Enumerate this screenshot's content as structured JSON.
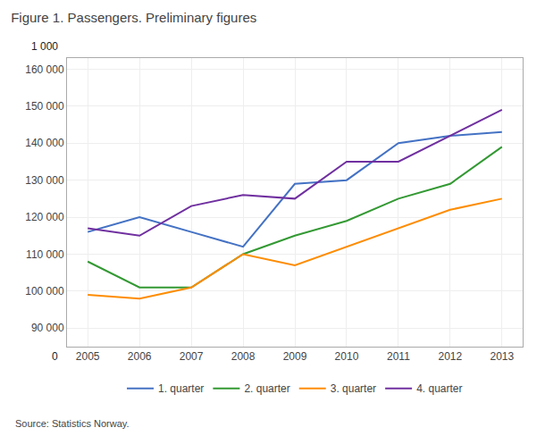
{
  "chart_data": {
    "type": "line",
    "title": "Figure 1. Passengers. Preliminary figures",
    "x": [
      2005,
      2006,
      2007,
      2008,
      2009,
      2010,
      2011,
      2012,
      2013
    ],
    "series": [
      {
        "name": "1. quarter",
        "color": "#4472C4",
        "values": [
          116000,
          120000,
          116000,
          112000,
          129000,
          130000,
          140000,
          142000,
          143000
        ]
      },
      {
        "name": "2. quarter",
        "color": "#339933",
        "values": [
          108000,
          101000,
          101000,
          110000,
          115000,
          119000,
          125000,
          129000,
          139000
        ]
      },
      {
        "name": "3. quarter",
        "color": "#FF8C00",
        "values": [
          99000,
          98000,
          101000,
          110000,
          107000,
          112000,
          117000,
          122000,
          125000
        ]
      },
      {
        "name": "4. quarter",
        "color": "#7030A0",
        "values": [
          117000,
          115000,
          123000,
          126000,
          125000,
          135000,
          135000,
          142000,
          149000
        ]
      }
    ],
    "xlim": [
      2004.6,
      2013.4
    ],
    "xticks": [
      2005,
      2006,
      2007,
      2008,
      2009,
      2010,
      2011,
      2012,
      2013
    ],
    "ylim": [
      85000,
      163000
    ],
    "yticks": [
      {
        "value": 90000,
        "label": "90 000"
      },
      {
        "value": 100000,
        "label": "100 000"
      },
      {
        "value": 110000,
        "label": "110 000"
      },
      {
        "value": 120000,
        "label": "120 000"
      },
      {
        "value": 130000,
        "label": "130 000"
      },
      {
        "value": 140000,
        "label": "140 000"
      },
      {
        "value": 150000,
        "label": "150 000"
      },
      {
        "value": 160000,
        "label": "160 000"
      }
    ],
    "annotations": [
      "1 000",
      "0"
    ],
    "source": "Source: Statistics Norway.",
    "grid": true,
    "legend": "bottom"
  }
}
